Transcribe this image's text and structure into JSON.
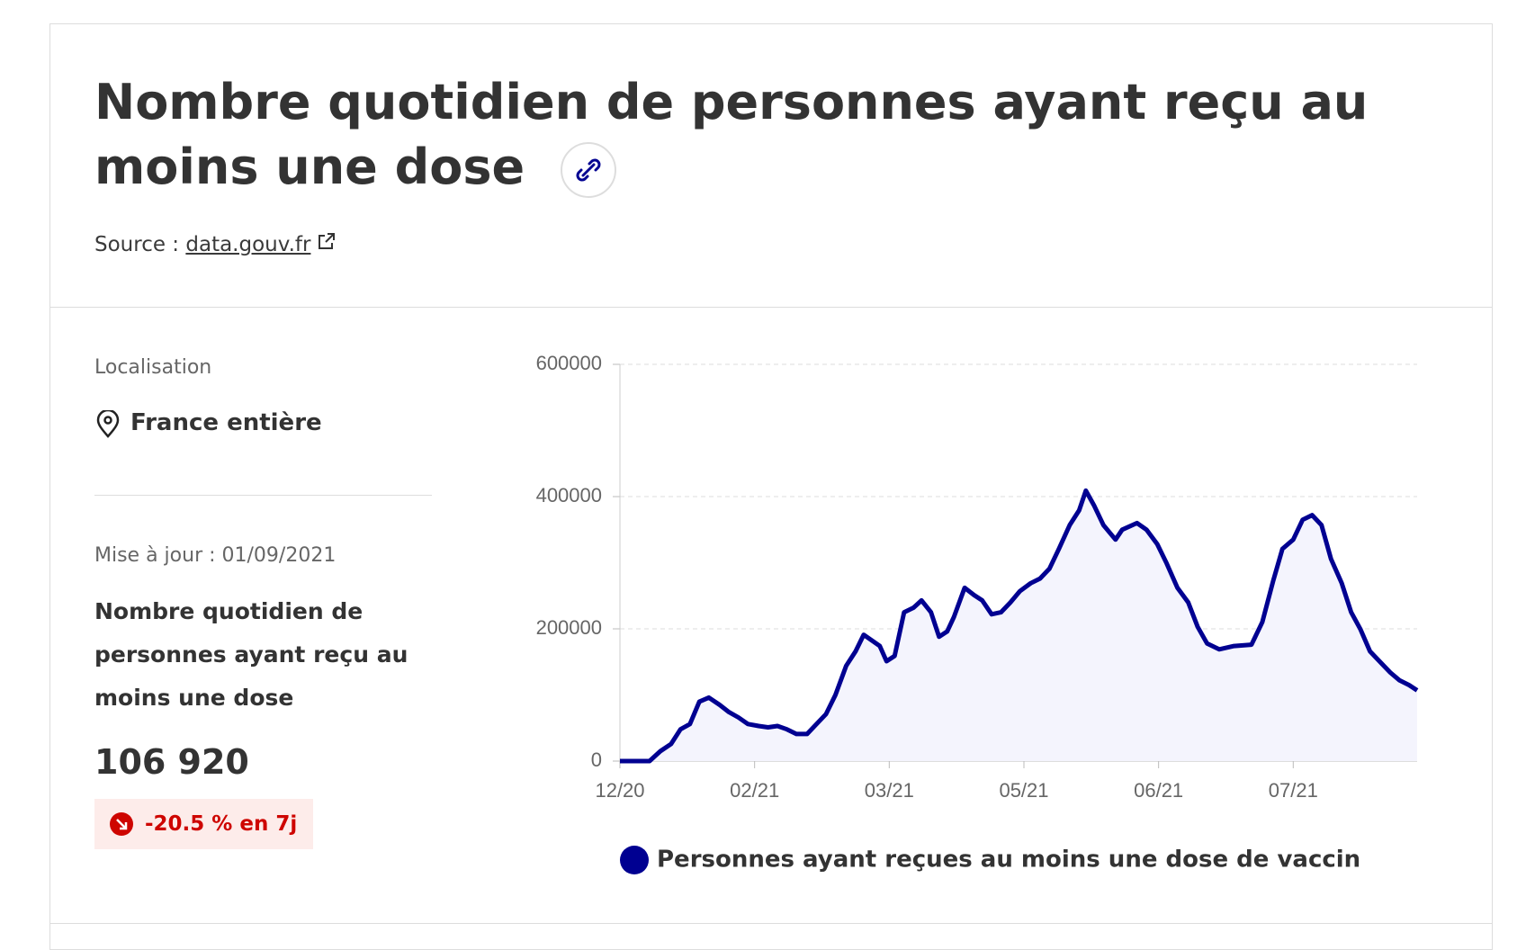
{
  "header": {
    "title": "Nombre quotidien de personnes ayant reçu au moins une dose",
    "source_label": "Source :",
    "source_link": "data.gouv.fr"
  },
  "sidebar": {
    "location_label": "Localisation",
    "location": "France entière",
    "updated": "Mise à jour : 01/09/2021",
    "indicator": "Nombre quotidien de personnes ayant reçu au moins une dose",
    "value": "106 920",
    "trend": "-20.5 % en 7j"
  },
  "chart_data": {
    "type": "line",
    "x": [
      0,
      0.22,
      0.3,
      0.38,
      0.45,
      0.52,
      0.59,
      0.66,
      0.74,
      0.81,
      0.88,
      0.95,
      1.03,
      1.1,
      1.17,
      1.24,
      1.31,
      1.39,
      1.46,
      1.53,
      1.6,
      1.68,
      1.75,
      1.81,
      1.86,
      1.93,
      1.98,
      2.04,
      2.11,
      2.18,
      2.24,
      2.31,
      2.37,
      2.43,
      2.48,
      2.56,
      2.63,
      2.69,
      2.76,
      2.83,
      2.9,
      2.97,
      3.05,
      3.12,
      3.19,
      3.26,
      3.34,
      3.41,
      3.46,
      3.52,
      3.59,
      3.68,
      3.73,
      3.84,
      3.91,
      3.99,
      4.06,
      4.14,
      4.22,
      4.29,
      4.36,
      4.45,
      4.56,
      4.69,
      4.77,
      4.85,
      4.92,
      5.0,
      5.07,
      5.14,
      5.21,
      5.28,
      5.36,
      5.43,
      5.5,
      5.57,
      5.64,
      5.72,
      5.79,
      5.86,
      5.92
    ],
    "series": [
      {
        "name": "Personnes ayant reçues au moins une dose de vaccin",
        "color": "#000091",
        "values": [
          0,
          0,
          15000,
          26000,
          48000,
          56000,
          90000,
          96000,
          85000,
          74000,
          66000,
          56000,
          53000,
          51000,
          53000,
          48000,
          41000,
          41000,
          56000,
          71000,
          100000,
          144000,
          166000,
          191000,
          184000,
          174000,
          151000,
          159000,
          225000,
          232000,
          243000,
          225000,
          188000,
          196000,
          218000,
          262000,
          251000,
          243000,
          222000,
          225000,
          240000,
          257000,
          269000,
          276000,
          291000,
          321000,
          357000,
          379000,
          409000,
          387000,
          357000,
          335000,
          350000,
          360000,
          350000,
          328000,
          299000,
          262000,
          240000,
          203000,
          178000,
          169000,
          174000,
          176000,
          210000,
          272000,
          321000,
          335000,
          365000,
          372000,
          357000,
          306000,
          269000,
          225000,
          199000,
          166000,
          151000,
          134000,
          122000,
          115000,
          106920
        ]
      }
    ],
    "xlim": [
      0,
      5.92
    ],
    "xticks": [
      {
        "value": 0,
        "label": "12/20"
      },
      {
        "value": 1,
        "label": "02/21"
      },
      {
        "value": 2,
        "label": "03/21"
      },
      {
        "value": 3,
        "label": "05/21"
      },
      {
        "value": 4,
        "label": "06/21"
      },
      {
        "value": 5,
        "label": "07/21"
      }
    ],
    "ylim": [
      0,
      600000
    ],
    "yticks": [
      0,
      200000,
      400000,
      600000
    ],
    "grid": true,
    "area_fill": "#f4f4fd"
  }
}
